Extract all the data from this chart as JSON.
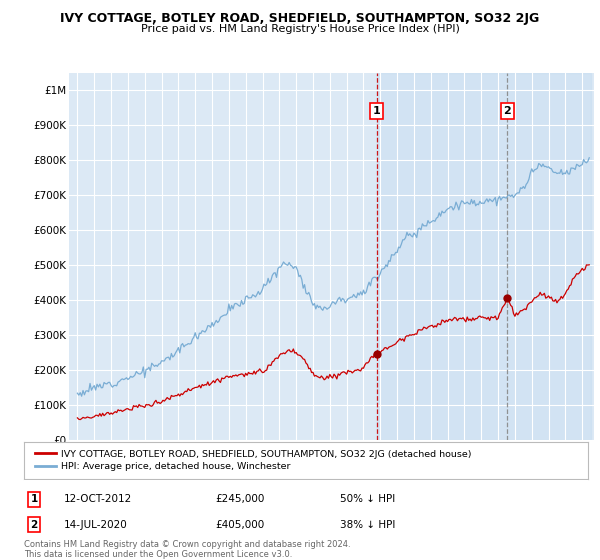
{
  "title": "IVY COTTAGE, BOTLEY ROAD, SHEDFIELD, SOUTHAMPTON, SO32 2JG",
  "subtitle": "Price paid vs. HM Land Registry's House Price Index (HPI)",
  "background_color": "#dce9f5",
  "plot_bg_color": "#dce9f5",
  "ylabel_ticks": [
    "£0",
    "£100K",
    "£200K",
    "£300K",
    "£400K",
    "£500K",
    "£600K",
    "£700K",
    "£800K",
    "£900K",
    "£1M"
  ],
  "ytick_values": [
    0,
    100000,
    200000,
    300000,
    400000,
    500000,
    600000,
    700000,
    800000,
    900000,
    1000000
  ],
  "ylim": [
    0,
    1050000
  ],
  "transaction1_date": 2012.79,
  "transaction1_price": 245000,
  "transaction2_date": 2020.54,
  "transaction2_price": 405000,
  "legend_red_label": "IVY COTTAGE, BOTLEY ROAD, SHEDFIELD, SOUTHAMPTON, SO32 2JG (detached house)",
  "legend_blue_label": "HPI: Average price, detached house, Winchester",
  "footer_text": "Contains HM Land Registry data © Crown copyright and database right 2024.\nThis data is licensed under the Open Government Licence v3.0.",
  "red_color": "#cc0000",
  "blue_color": "#7aadd4",
  "shade_color": "#ddeeff"
}
